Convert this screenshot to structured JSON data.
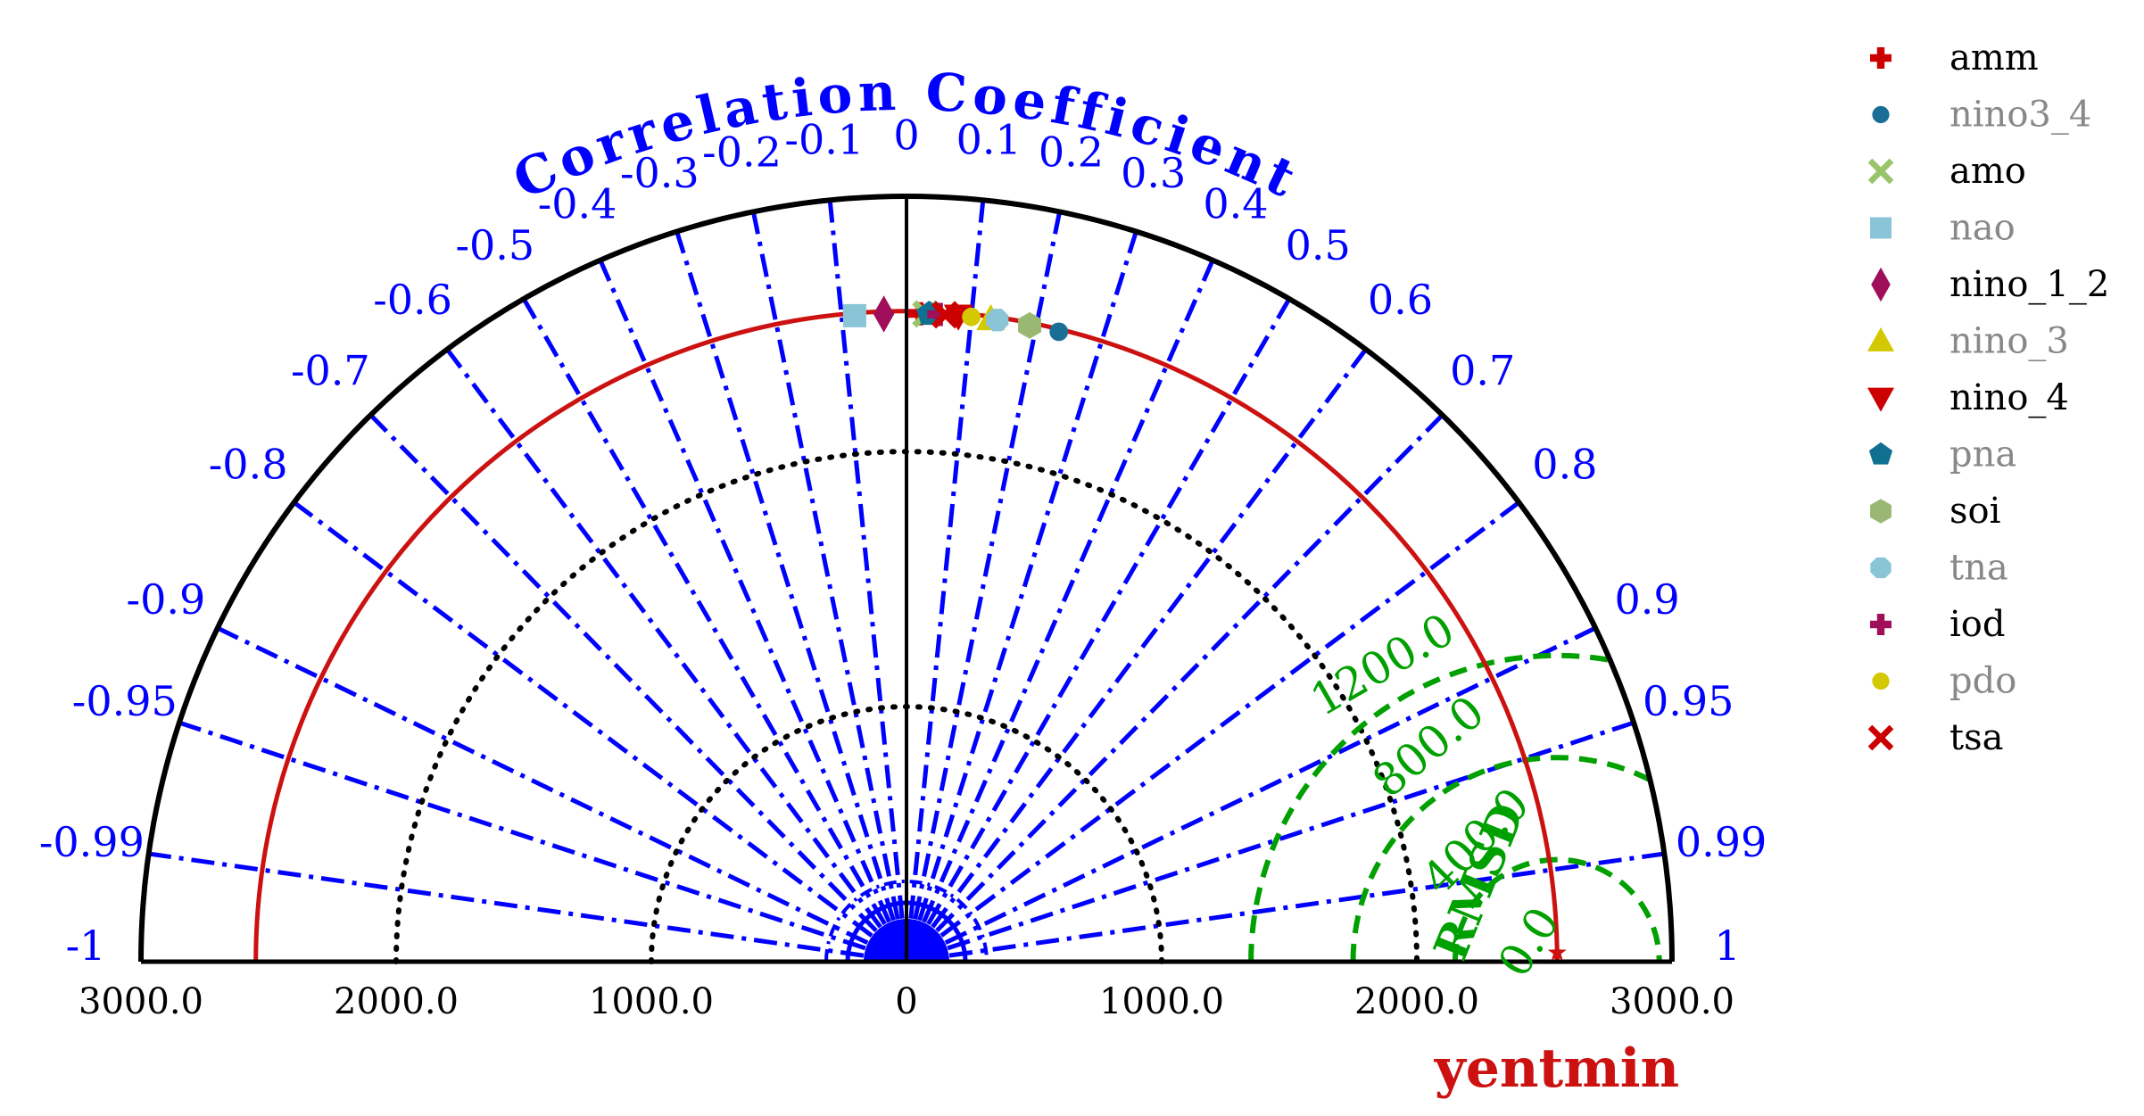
{
  "chart_data": {
    "type": "taylor-diagram",
    "title": "",
    "correlation_axis_label": "Correlation Coefficient",
    "rmsd_label": "RMSD",
    "reference_label": "yentmin",
    "reference_std": 2550,
    "std_range": [
      0,
      3000
    ],
    "std_tick_labels": [
      "3000.0",
      "2000.0",
      "1000.0",
      "0",
      "1000.0",
      "2000.0",
      "3000.0"
    ],
    "std_tick_values": [
      -3000,
      -2000,
      -1000,
      0,
      1000,
      2000,
      3000
    ],
    "std_dotted_circles": [
      1000,
      2000
    ],
    "correlation_ticks": [
      {
        "value": -1,
        "label": "-1"
      },
      {
        "value": -0.99,
        "label": "-0.99"
      },
      {
        "value": -0.95,
        "label": "-0.95"
      },
      {
        "value": -0.9,
        "label": "-0.9"
      },
      {
        "value": -0.8,
        "label": "-0.8"
      },
      {
        "value": -0.7,
        "label": "-0.7"
      },
      {
        "value": -0.6,
        "label": "-0.6"
      },
      {
        "value": -0.5,
        "label": "-0.5"
      },
      {
        "value": -0.4,
        "label": "-0.4"
      },
      {
        "value": -0.3,
        "label": "-0.3"
      },
      {
        "value": -0.2,
        "label": "-0.2"
      },
      {
        "value": -0.1,
        "label": "-0.1"
      },
      {
        "value": 0,
        "label": "0"
      },
      {
        "value": 0.1,
        "label": "0.1"
      },
      {
        "value": 0.2,
        "label": "0.2"
      },
      {
        "value": 0.3,
        "label": "0.3"
      },
      {
        "value": 0.4,
        "label": "0.4"
      },
      {
        "value": 0.5,
        "label": "0.5"
      },
      {
        "value": 0.6,
        "label": "0.6"
      },
      {
        "value": 0.7,
        "label": "0.7"
      },
      {
        "value": 0.8,
        "label": "0.8"
      },
      {
        "value": 0.9,
        "label": "0.9"
      },
      {
        "value": 0.95,
        "label": "0.95"
      },
      {
        "value": 0.99,
        "label": "0.99"
      },
      {
        "value": 1,
        "label": "1"
      }
    ],
    "rmsd_contours": [
      {
        "value": 0,
        "label": "0.0"
      },
      {
        "value": 400,
        "label": "400.0"
      },
      {
        "value": 800,
        "label": "800.0"
      },
      {
        "value": 1200,
        "label": "1200.0"
      }
    ],
    "series": [
      {
        "name": "amm",
        "marker": "plus",
        "color": "#cc0000",
        "corr": 0.02,
        "std": 2540,
        "label_color": "#000000"
      },
      {
        "name": "nino3_4",
        "marker": "circle",
        "color": "#1a6e96",
        "corr": 0.235,
        "std": 2540,
        "label_color": "#888888"
      },
      {
        "name": "amo",
        "marker": "x",
        "color": "#99c46a",
        "corr": 0.03,
        "std": 2540,
        "label_color": "#000000"
      },
      {
        "name": "nao",
        "marker": "square",
        "color": "#89c5d6",
        "corr": -0.08,
        "std": 2540,
        "label_color": "#888888"
      },
      {
        "name": "nino_1_2",
        "marker": "diamond",
        "color": "#a0105a",
        "corr": -0.035,
        "std": 2540,
        "label_color": "#000000"
      },
      {
        "name": "nino_3",
        "marker": "triangle-up",
        "color": "#d4c800",
        "corr": 0.13,
        "std": 2540,
        "label_color": "#888888"
      },
      {
        "name": "nino_4",
        "marker": "triangle-down",
        "color": "#cc0000",
        "corr": 0.08,
        "std": 2540,
        "label_color": "#000000"
      },
      {
        "name": "pna",
        "marker": "pentagon",
        "color": "#0f7090",
        "corr": 0.035,
        "std": 2540,
        "label_color": "#888888"
      },
      {
        "name": "soi",
        "marker": "hexagon",
        "color": "#9ab874",
        "corr": 0.19,
        "std": 2540,
        "label_color": "#000000"
      },
      {
        "name": "tna",
        "marker": "octagon",
        "color": "#89c5d6",
        "corr": 0.14,
        "std": 2540,
        "label_color": "#888888"
      },
      {
        "name": "iod",
        "marker": "plus",
        "color": "#a0105a",
        "corr": 0.05,
        "std": 2540,
        "label_color": "#000000"
      },
      {
        "name": "pdo",
        "marker": "circle",
        "color": "#d4c800",
        "corr": 0.1,
        "std": 2540,
        "label_color": "#888888"
      },
      {
        "name": "tsa",
        "marker": "x",
        "color": "#cc0000",
        "corr": 0.06,
        "std": 2540,
        "label_color": "#000000"
      }
    ],
    "legend_position": "top-right",
    "colors": {
      "correlation": "#0000ff",
      "rmsd": "#00a000",
      "reference": "#cc1111",
      "axis": "#000000"
    }
  }
}
